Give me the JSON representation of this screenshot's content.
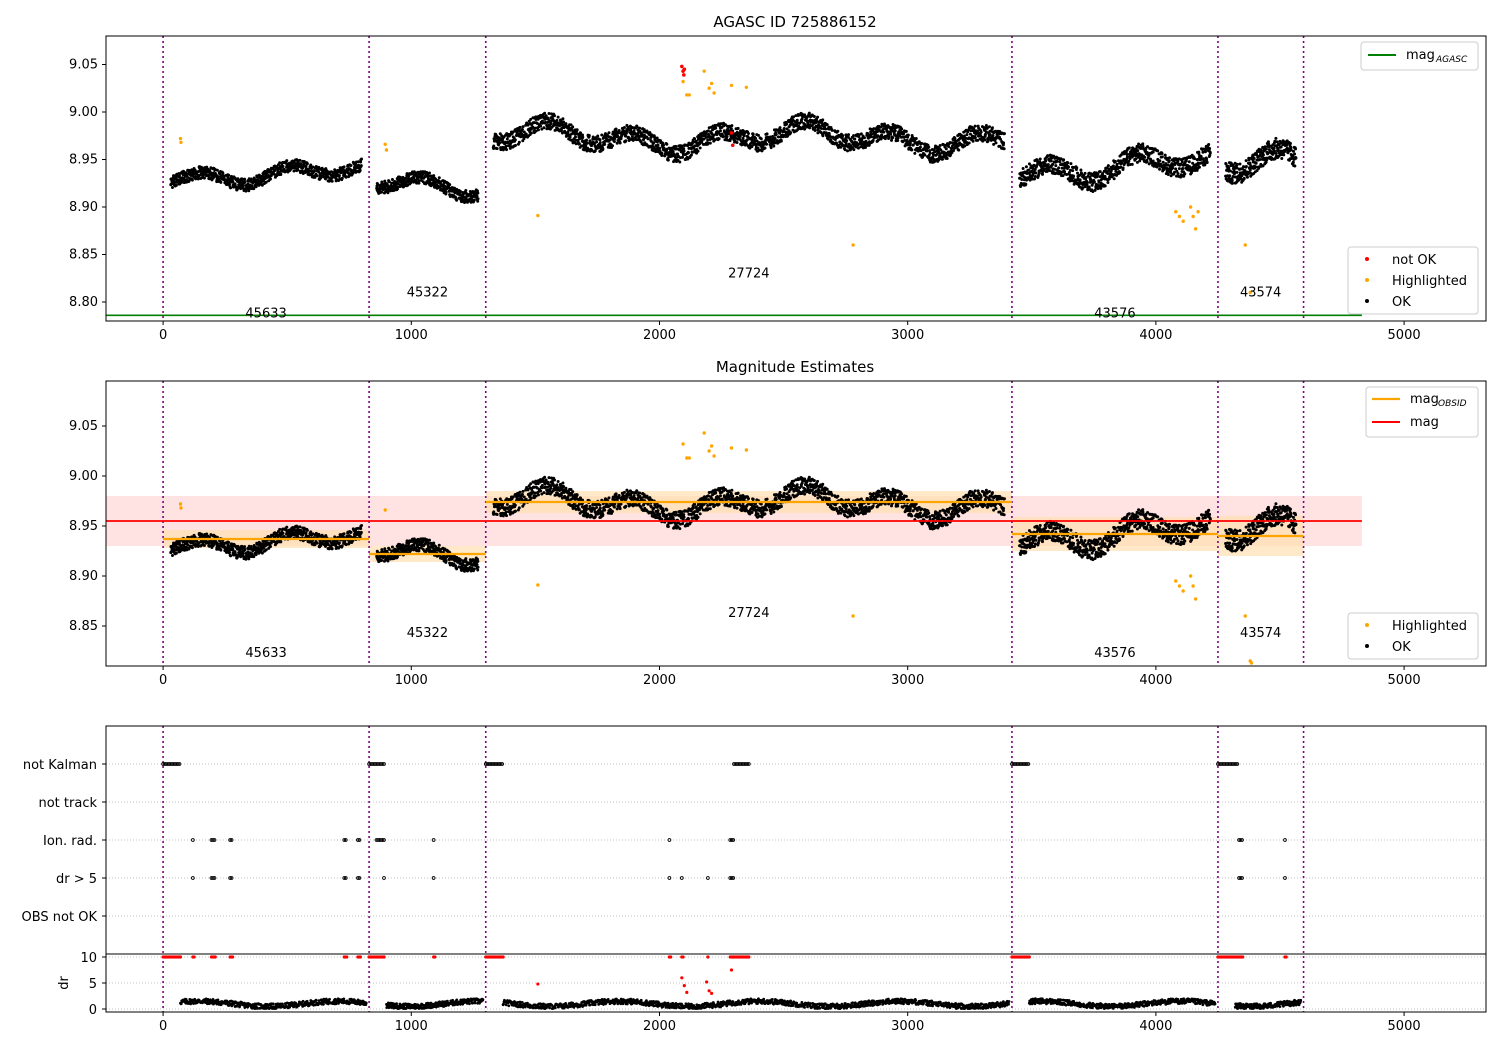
{
  "figure_title": "AGASC ID 725886152",
  "colors": {
    "ok": "#000000",
    "highlighted": "#ffa500",
    "not_ok": "#ff0000",
    "mag_agasc": "#008000",
    "mag_obsid": "#ffa500",
    "mag": "#ff0000",
    "obs_boundary": "#800080",
    "mag_band": "#ffcccc",
    "obsid_band": "#ffe0b0",
    "grid": "#b0b0b0"
  },
  "chart_data": [
    {
      "type": "scatter",
      "title": "AGASC ID 725886152",
      "xlim": [
        -230,
        5330
      ],
      "ylim": [
        8.78,
        9.08
      ],
      "xticks": [
        0,
        1000,
        2000,
        3000,
        4000,
        5000
      ],
      "yticks": [
        8.8,
        8.85,
        8.9,
        8.95,
        9.0,
        9.05
      ],
      "xlabel": "",
      "ylabel": "",
      "observation_boundaries": [
        0,
        830,
        1300,
        3420,
        4250,
        4595
      ],
      "segments": [
        {
          "obsid": "45633",
          "x": [
            0,
            830
          ],
          "level": 8.935,
          "wiggle": 0.012,
          "label_y": 8.788,
          "label_x": 415
        },
        {
          "obsid": "45322",
          "x": [
            830,
            1300
          ],
          "level": 8.922,
          "wiggle": 0.012,
          "label_y": 8.81,
          "label_x": 1065
        },
        {
          "obsid": "27724",
          "x": [
            1300,
            3420
          ],
          "level": 8.973,
          "wiggle": 0.016,
          "label_y": 8.83,
          "label_x": 2360
        },
        {
          "obsid": "43576",
          "x": [
            3420,
            4250
          ],
          "level": 8.943,
          "wiggle": 0.018,
          "label_y": 8.788,
          "label_x": 3835
        },
        {
          "obsid": "43574",
          "x": [
            4250,
            4595
          ],
          "level": 8.94,
          "wiggle": 0.02,
          "label_y": 8.81,
          "label_x": 4422
        }
      ],
      "series": [
        {
          "name": "mag_AGASC",
          "kind": "line",
          "x": [
            -230,
            4830
          ],
          "y": [
            8.786,
            8.786
          ]
        },
        {
          "name": "not OK",
          "kind": "points",
          "x": [
            2090,
            2095,
            2098,
            2100,
            2290,
            2295
          ],
          "y": [
            9.048,
            9.043,
            9.039,
            9.045,
            8.978,
            8.965
          ]
        },
        {
          "name": "Highlighted",
          "kind": "points",
          "x": [
            70,
            72,
            895,
            900,
            1510,
            2095,
            2110,
            2120,
            2180,
            2200,
            2210,
            2220,
            2290,
            2350,
            2780,
            4080,
            4095,
            4110,
            4140,
            4150,
            4160,
            4170,
            4360,
            4380
          ],
          "y": [
            8.972,
            8.968,
            8.966,
            8.96,
            8.891,
            9.032,
            9.018,
            9.018,
            9.043,
            9.025,
            9.03,
            9.02,
            9.028,
            9.026,
            8.86,
            8.895,
            8.89,
            8.885,
            8.9,
            8.89,
            8.877,
            8.895,
            8.86,
            8.81
          ]
        },
        {
          "name": "OK",
          "kind": "points"
        }
      ],
      "legend_top": {
        "placement": "upper right",
        "entries": [
          {
            "label": "mag",
            "subscript": "AGASC"
          }
        ]
      },
      "legend_bottom": {
        "placement": "lower right",
        "entries": [
          "not OK",
          "Highlighted",
          "OK"
        ]
      }
    },
    {
      "type": "scatter",
      "title": "Magnitude Estimates",
      "xlim": [
        -230,
        5330
      ],
      "ylim": [
        8.81,
        9.095
      ],
      "xticks": [
        0,
        1000,
        2000,
        3000,
        4000,
        5000
      ],
      "yticks": [
        8.85,
        8.9,
        8.95,
        9.0,
        9.05
      ],
      "mag": {
        "value": 8.955,
        "band": [
          8.93,
          8.98
        ],
        "x": [
          -230,
          4830
        ]
      },
      "obsid_levels": [
        {
          "obsid": "45633",
          "x": [
            0,
            830
          ],
          "value": 8.937,
          "band": [
            8.928,
            8.946
          ],
          "label_y": 8.823
        },
        {
          "obsid": "45322",
          "x": [
            830,
            1300
          ],
          "value": 8.922,
          "band": [
            8.914,
            8.93
          ],
          "label_y": 8.843
        },
        {
          "obsid": "27724",
          "x": [
            1300,
            3420
          ],
          "value": 8.974,
          "band": [
            8.963,
            8.985
          ],
          "label_y": 8.863
        },
        {
          "obsid": "43576",
          "x": [
            3420,
            4250
          ],
          "value": 8.942,
          "band": [
            8.925,
            8.959
          ],
          "label_y": 8.823
        },
        {
          "obsid": "43574",
          "x": [
            4250,
            4595
          ],
          "value": 8.94,
          "band": [
            8.92,
            8.96
          ],
          "label_y": 8.843
        }
      ],
      "series": [
        {
          "name": "Highlighted",
          "kind": "points",
          "x": [
            70,
            72,
            895,
            1510,
            2095,
            2110,
            2120,
            2180,
            2200,
            2210,
            2220,
            2290,
            2350,
            2780,
            4080,
            4095,
            4110,
            4140,
            4150,
            4160,
            4360,
            4380,
            4385
          ],
          "y": [
            8.972,
            8.968,
            8.966,
            8.891,
            9.032,
            9.018,
            9.018,
            9.043,
            9.025,
            9.03,
            9.02,
            9.028,
            9.026,
            8.86,
            8.895,
            8.89,
            8.885,
            8.9,
            8.89,
            8.877,
            8.86,
            8.815,
            8.813
          ]
        },
        {
          "name": "OK",
          "kind": "points"
        }
      ],
      "legend_top": {
        "placement": "upper right",
        "entries": [
          {
            "label": "mag",
            "subscript": "OBSID"
          },
          {
            "label": "mag",
            "subscript": ""
          }
        ]
      },
      "legend_bottom": {
        "placement": "lower right",
        "entries": [
          "Highlighted",
          "OK"
        ]
      }
    },
    {
      "type": "scatter",
      "title": "",
      "xlim": [
        -230,
        5330
      ],
      "xticks": [
        0,
        1000,
        2000,
        3000,
        4000,
        5000
      ],
      "flag_rows": [
        "not Kalman",
        "not track",
        "Ion. rad.",
        "dr > 5",
        "OBS not OK"
      ],
      "flags": {
        "not Kalman": [
          [
            0,
            70
          ],
          [
            830,
            890
          ],
          [
            1300,
            1370
          ],
          [
            2300,
            2360
          ],
          [
            3420,
            3490
          ],
          [
            4250,
            4330
          ]
        ],
        "not track": [],
        "Ion. rad.": [
          [
            120,
            125
          ],
          [
            195,
            210
          ],
          [
            270,
            280
          ],
          [
            730,
            740
          ],
          [
            785,
            795
          ],
          [
            860,
            890
          ],
          [
            1090,
            1095
          ],
          [
            2040,
            2045
          ],
          [
            2285,
            2300
          ],
          [
            4335,
            4350
          ],
          [
            4520,
            4525
          ]
        ],
        "dr > 5": [
          [
            120,
            125
          ],
          [
            195,
            210
          ],
          [
            270,
            280
          ],
          [
            730,
            740
          ],
          [
            785,
            795
          ],
          [
            890,
            892
          ],
          [
            1090,
            1095
          ],
          [
            2040,
            2045
          ],
          [
            2090,
            2095
          ],
          [
            2195,
            2198
          ],
          [
            2285,
            2300
          ],
          [
            4335,
            4350
          ],
          [
            4520,
            4525
          ]
        ],
        "OBS not OK": []
      },
      "dr_yticks": [
        0,
        5,
        10
      ],
      "dr_ylabel": "dr",
      "dr_clip": 10,
      "dr_spikes": {
        "x": [
          2090,
          2100,
          2110,
          2190,
          2200,
          2210,
          2290,
          1510
        ],
        "y": [
          6.0,
          4.5,
          3.2,
          5.2,
          3.5,
          3.0,
          7.5,
          4.8
        ]
      }
    }
  ]
}
